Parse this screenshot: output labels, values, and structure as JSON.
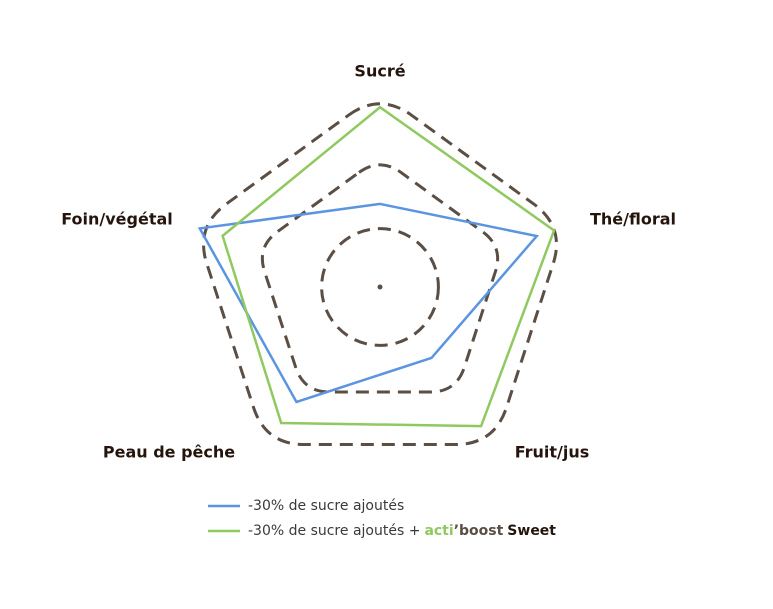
{
  "chart_data": {
    "type": "radar",
    "categories": [
      "Sucré",
      "Thé/floral",
      "Fruit/jus",
      "Peau de pêche",
      "Foin/végétal"
    ],
    "rlim": [
      0,
      3
    ],
    "rticks": [
      1,
      2,
      3
    ],
    "grid": true,
    "series": [
      {
        "name": "-30% de sucre ajoutés",
        "color": "#5b95e0",
        "values": [
          1.28,
          2.54,
          1.35,
          2.19,
          2.92
        ]
      },
      {
        "name": "-30% de sucre ajoutés +",
        "name_brand": [
          "acti",
          "’boost",
          "Sweet"
        ],
        "color": "#8fc95f",
        "values": [
          2.77,
          2.82,
          2.65,
          2.59,
          2.55
        ]
      }
    ]
  }
}
